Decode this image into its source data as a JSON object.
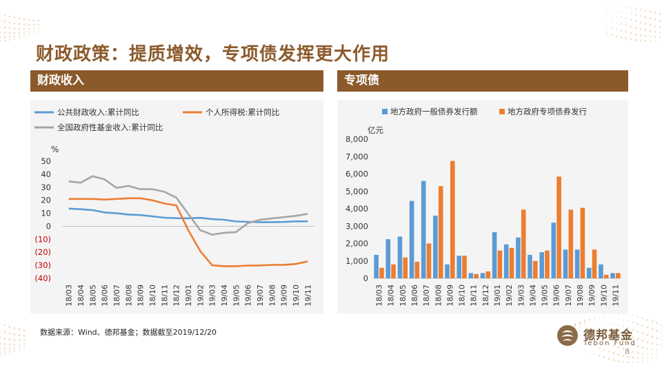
{
  "page": {
    "title": "财政政策：提质增效，专项债发挥更大作用",
    "left_header": "财政收入",
    "right_header": "专项债",
    "source": "数据来源：Wind、德邦基金；数据截至2019/12/20",
    "logo_name": "德邦基金",
    "logo_en": "Tebon Fund",
    "page_number": "8",
    "logo_icon": "tebon-logo-icon"
  },
  "colors": {
    "brown": "#8B5A2B",
    "blue": "#5B9BD5",
    "orange": "#ED7D31",
    "gray": "#A5A5A5",
    "negative_label": "#C00000"
  },
  "chart_data": [
    {
      "type": "line",
      "ylabel": "%",
      "ylim": [
        -40,
        50
      ],
      "y_ticks": [
        50,
        40,
        30,
        20,
        10,
        0,
        -10,
        -20,
        -30,
        -40
      ],
      "y_tick_labels": [
        "50",
        "40",
        "30",
        "20",
        "10",
        "0",
        "(10)",
        "(20)",
        "(30)",
        "(40)"
      ],
      "x": [
        "18/03",
        "18/04",
        "18/05",
        "18/06",
        "18/07",
        "18/08",
        "18/09",
        "18/10",
        "18/11",
        "18/12",
        "19/01",
        "19/02",
        "19/03",
        "19/04",
        "19/05",
        "19/06",
        "19/07",
        "19/08",
        "19/09",
        "19/10",
        "19/11"
      ],
      "legend": "top",
      "series": [
        {
          "name": "公共财政收入:累计同比",
          "color": "#5B9BD5",
          "values": [
            13.6,
            13.1,
            12.4,
            10.6,
            10.0,
            9.0,
            8.6,
            7.6,
            6.6,
            6.2,
            6.1,
            6.5,
            5.5,
            5.0,
            3.7,
            3.4,
            3.1,
            3.2,
            3.3,
            3.8,
            3.8
          ]
        },
        {
          "name": "个人所得税:累计同比",
          "color": "#ED7D31",
          "values": [
            21.0,
            21.0,
            21.0,
            20.5,
            21.0,
            21.5,
            21.5,
            20.0,
            17.5,
            16.0,
            -3.0,
            -19.0,
            -30.0,
            -30.7,
            -30.7,
            -30.2,
            -30.1,
            -29.7,
            -29.6,
            -29.0,
            -27.0
          ]
        },
        {
          "name": "全国政府性基金收入:累计同比",
          "color": "#A5A5A5",
          "values": [
            34.5,
            33.5,
            38.5,
            36.0,
            29.5,
            31.0,
            28.5,
            28.5,
            26.5,
            22.0,
            9.5,
            -3.0,
            -6.5,
            -5.0,
            -4.5,
            2.5,
            5.0,
            6.0,
            7.0,
            8.0,
            9.5
          ]
        }
      ]
    },
    {
      "type": "bar",
      "ylabel": "亿元",
      "ylim": [
        0,
        8000
      ],
      "y_ticks": [
        0,
        1000,
        2000,
        3000,
        4000,
        5000,
        6000,
        7000,
        8000
      ],
      "y_tick_labels": [
        "0",
        "1,000",
        "2,000",
        "3,000",
        "4,000",
        "5,000",
        "6,000",
        "7,000",
        "8,000"
      ],
      "categories": [
        "18/03",
        "18/04",
        "18/05",
        "18/06",
        "18/07",
        "18/08",
        "18/09",
        "18/10",
        "18/11",
        "18/12",
        "19/01",
        "19/02",
        "19/03",
        "19/04",
        "19/05",
        "19/06",
        "19/07",
        "19/08",
        "19/09",
        "19/10",
        "19/11"
      ],
      "legend": "top",
      "series": [
        {
          "name": "地方政府一般债券发行额",
          "color": "#5B9BD5",
          "values": [
            1350,
            2250,
            2400,
            4450,
            5600,
            3600,
            800,
            1300,
            300,
            300,
            2650,
            1950,
            2350,
            1350,
            1500,
            3200,
            1650,
            1650,
            600,
            800,
            300
          ]
        },
        {
          "name": "地方政府专项债券发行",
          "color": "#ED7D31",
          "values": [
            600,
            800,
            1200,
            950,
            2000,
            5300,
            6750,
            1300,
            250,
            400,
            1600,
            1750,
            3950,
            1000,
            1600,
            5850,
            3950,
            4050,
            1650,
            200,
            300
          ]
        }
      ]
    }
  ]
}
